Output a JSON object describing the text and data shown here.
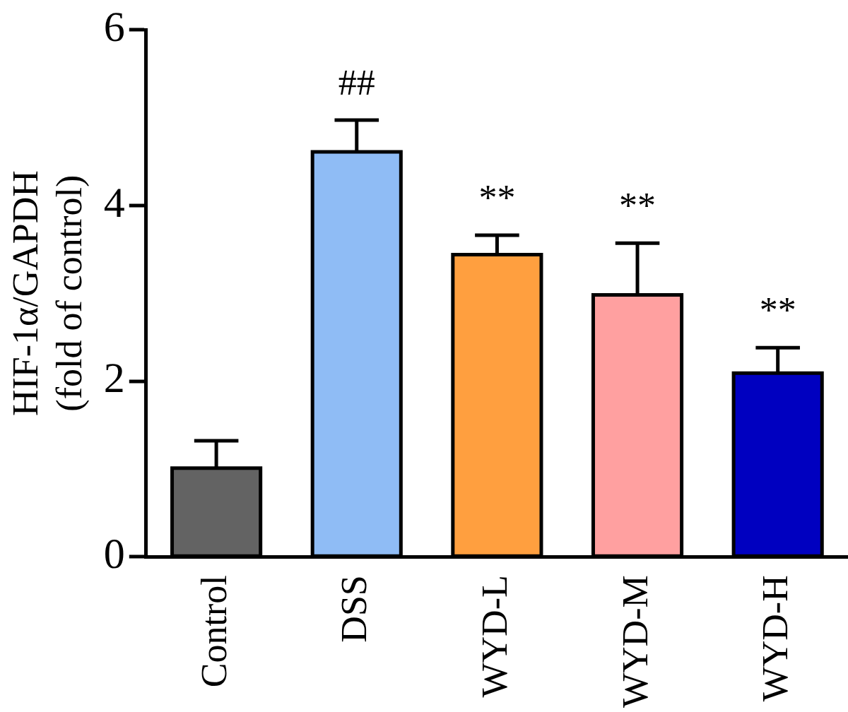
{
  "chart_data": {
    "type": "bar",
    "ylabel": "HIF-1α/GAPDH\n(fold of control)",
    "categories": [
      "Control",
      "DSS",
      "WYD-L",
      "WYD-M",
      "WYD-H"
    ],
    "values": [
      1.01,
      4.61,
      3.44,
      2.98,
      2.09
    ],
    "colors": [
      "#636363",
      "#8fbcf5",
      "#ff9f3f",
      "#ffa0a0",
      "#0000c0"
    ],
    "errors": [
      [
        1.01,
        1.32
      ],
      [
        4.61,
        4.97
      ],
      [
        3.44,
        3.66
      ],
      [
        2.98,
        3.57
      ],
      [
        2.09,
        2.38
      ]
    ],
    "ylim": [
      0,
      6
    ],
    "yticks": [
      0,
      2,
      4,
      6
    ],
    "grid": false,
    "legend": false,
    "value_labels": [
      null,
      "##",
      "**",
      "**",
      "**"
    ]
  }
}
